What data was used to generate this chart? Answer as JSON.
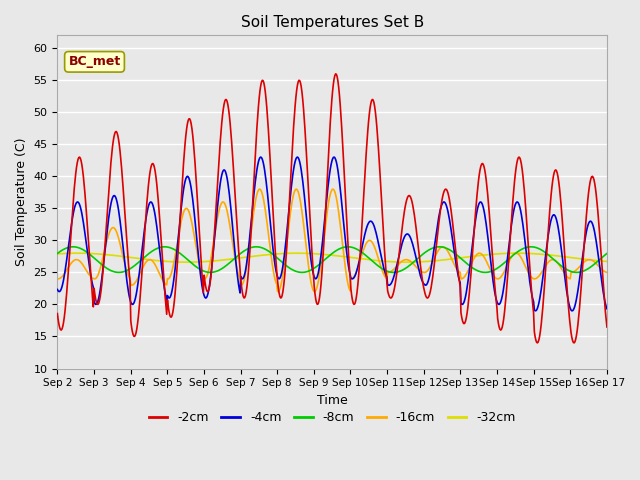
{
  "title": "Soil Temperatures Set B",
  "xlabel": "Time",
  "ylabel": "Soil Temperature (C)",
  "ylim": [
    10,
    62
  ],
  "yticks": [
    10,
    15,
    20,
    25,
    30,
    35,
    40,
    45,
    50,
    55,
    60
  ],
  "annotation": "BC_met",
  "series_colors": {
    "-2cm": "#dd0000",
    "-4cm": "#0000dd",
    "-8cm": "#00cc00",
    "-16cm": "#ffaa00",
    "-32cm": "#dddd00"
  },
  "background_color": "#e8e8e8",
  "plot_bg_color": "#e8e8e8",
  "grid_color": "#ffffff",
  "x_tick_labels": [
    "Sep 2",
    "Sep 3",
    "Sep 4",
    "Sep 5",
    "Sep 6",
    "Sep 7",
    "Sep 8",
    "Sep 9",
    "Sep 10",
    "Sep 11",
    "Sep 12",
    "Sep 13",
    "Sep 14",
    "Sep 15",
    "Sep 16",
    "Sep 17"
  ],
  "legend_entries": [
    "-2cm",
    "-4cm",
    "-8cm",
    "-16cm",
    "-32cm"
  ]
}
